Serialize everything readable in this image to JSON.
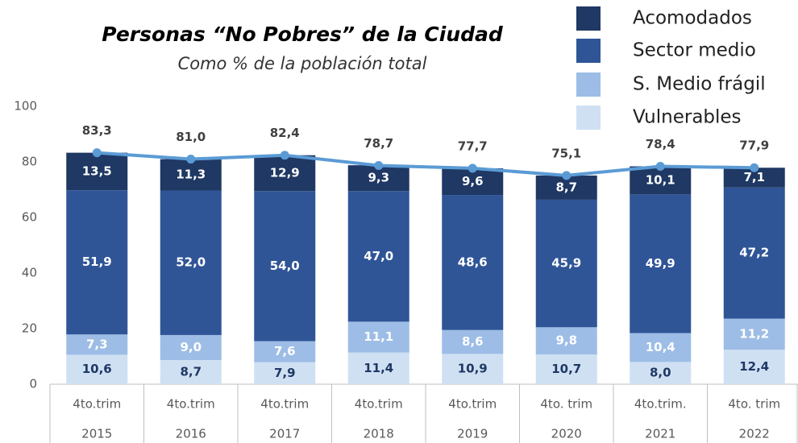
{
  "chart_data": {
    "type": "bar",
    "stacked": true,
    "title": "Personas “No Pobres” de la Ciudad",
    "subtitle": "Como % de la población total",
    "categories": [
      [
        "4to.trim",
        "2015"
      ],
      [
        "4to.trim",
        "2016"
      ],
      [
        "4to.trim",
        "2017"
      ],
      [
        "4to.trim",
        "2018"
      ],
      [
        "4to.trim",
        "2019"
      ],
      [
        "4to. trim",
        "2020"
      ],
      [
        "4to.trim.",
        "2021"
      ],
      [
        "4to. trim",
        "2022"
      ]
    ],
    "series": [
      {
        "name": "Vulnerables",
        "color": "#cfe0f3",
        "label_color": "#1f3864",
        "values": [
          10.6,
          8.7,
          7.9,
          11.4,
          10.9,
          10.7,
          8.0,
          12.4
        ],
        "value_labels": [
          "10,6",
          "8,7",
          "7,9",
          "11,4",
          "10,9",
          "10,7",
          "8,0",
          "12,4"
        ]
      },
      {
        "name": "S. Medio frágil",
        "color": "#9dbde6",
        "label_color": "#ffffff",
        "values": [
          7.3,
          9.0,
          7.6,
          11.1,
          8.6,
          9.8,
          10.4,
          11.2
        ],
        "value_labels": [
          "7,3",
          "9,0",
          "7,6",
          "11,1",
          "8,6",
          "9,8",
          "10,4",
          "11,2"
        ]
      },
      {
        "name": "Sector medio",
        "color": "#2f5597",
        "label_color": "#ffffff",
        "values": [
          51.9,
          52.0,
          54.0,
          47.0,
          48.6,
          45.9,
          49.9,
          47.2
        ],
        "value_labels": [
          "51,9",
          "52,0",
          "54,0",
          "47,0",
          "48,6",
          "45,9",
          "49,9",
          "47,2"
        ]
      },
      {
        "name": "Acomodados",
        "color": "#1f3864",
        "label_color": "#ffffff",
        "values": [
          13.5,
          11.3,
          12.9,
          9.3,
          9.6,
          8.7,
          10.1,
          7.1
        ],
        "value_labels": [
          "13,5",
          "11,3",
          "12,9",
          "9,3",
          "9,6",
          "8,7",
          "10,1",
          "7,1"
        ]
      }
    ],
    "total": {
      "color": "#5b9bd5",
      "values": [
        83.3,
        81.0,
        82.4,
        78.7,
        77.7,
        75.1,
        78.4,
        77.9
      ],
      "value_labels": [
        "83,3",
        "81,0",
        "82,4",
        "78,7",
        "77,7",
        "75,1",
        "78,4",
        "77,9"
      ]
    },
    "ylim": [
      0,
      100
    ],
    "yticks": [
      0,
      20,
      40,
      60,
      80,
      100
    ],
    "grid": false
  }
}
